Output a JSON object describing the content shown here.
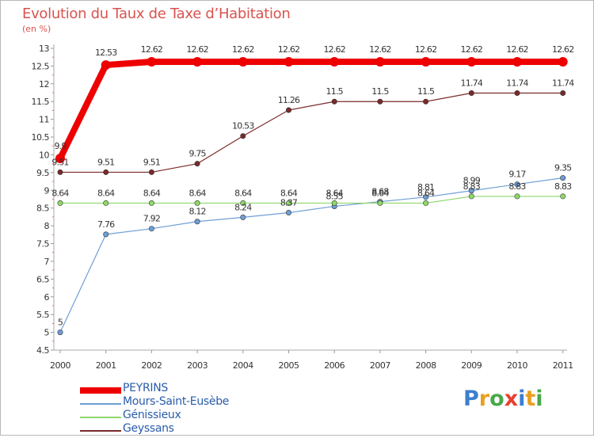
{
  "title": "Evolution du Taux de Taxe d’Habitation",
  "unit_label": "(en %)",
  "brand": {
    "letters": [
      "P",
      "r",
      "o",
      "x",
      "i",
      "t",
      "i"
    ],
    "colors": [
      "#3b7fd0",
      "#e8a020",
      "#4aa84a",
      "#e84030",
      "#3b7fd0",
      "#e8a020",
      "#4aa84a"
    ]
  },
  "chart_data": {
    "type": "line",
    "x": [
      2000,
      2001,
      2002,
      2003,
      2004,
      2005,
      2006,
      2007,
      2008,
      2009,
      2010,
      2011
    ],
    "ylim": [
      4.5,
      13
    ],
    "yticks": [
      "4.5",
      "5",
      "5.5",
      "6",
      "6.5",
      "7",
      "7.5",
      "8",
      "8.5",
      "9",
      "9.5",
      "10",
      "10.5",
      "11",
      "11.5",
      "12",
      "12.5",
      "13"
    ],
    "grid": false,
    "legend_position": "bottom-left",
    "series": [
      {
        "name": "PEYRINS",
        "color": "#ee0000",
        "width": 8,
        "dot": 6,
        "values": [
          9.9,
          12.53,
          12.62,
          12.62,
          12.62,
          12.62,
          12.62,
          12.62,
          12.62,
          12.62,
          12.62,
          12.62
        ],
        "labels": [
          "9.9",
          "12.53",
          "12.62",
          "12.62",
          "12.62",
          "12.62",
          "12.62",
          "12.62",
          "12.62",
          "12.62",
          "12.62",
          "12.62"
        ]
      },
      {
        "name": "Mours-Saint-Eusèbe",
        "color": "#6e9fd6",
        "width": 1.2,
        "dot": 3.2,
        "values": [
          5,
          7.76,
          7.92,
          8.12,
          8.24,
          8.37,
          8.55,
          8.68,
          8.81,
          8.99,
          9.17,
          9.35
        ],
        "labels": [
          "5",
          "7.76",
          "7.92",
          "8.12",
          "8.24",
          "8.37",
          "8.55",
          "8.68",
          "8.81",
          "8.99",
          "9.17",
          "9.35"
        ]
      },
      {
        "name": "Génissieux",
        "color": "#8fd86a",
        "width": 1.2,
        "dot": 3.2,
        "values": [
          8.64,
          8.64,
          8.64,
          8.64,
          8.64,
          8.64,
          8.64,
          8.64,
          8.64,
          8.83,
          8.83,
          8.83
        ],
        "labels": [
          "8.64",
          "8.64",
          "8.64",
          "8.64",
          "8.64",
          "8.64",
          "8.64",
          "8.64",
          "8.64",
          "8.83",
          "8.83",
          "8.83"
        ]
      },
      {
        "name": "Geyssans",
        "color": "#7a2a2a",
        "width": 1.2,
        "dot": 3.2,
        "values": [
          9.51,
          9.51,
          9.51,
          9.75,
          10.53,
          11.26,
          11.5,
          11.5,
          11.5,
          11.74,
          11.74,
          11.74
        ],
        "labels": [
          "9.51",
          "9.51",
          "9.51",
          "9.75",
          "10.53",
          "11.26",
          "11.5",
          "11.5",
          "11.5",
          "11.74",
          "11.74",
          "11.74"
        ]
      }
    ]
  }
}
